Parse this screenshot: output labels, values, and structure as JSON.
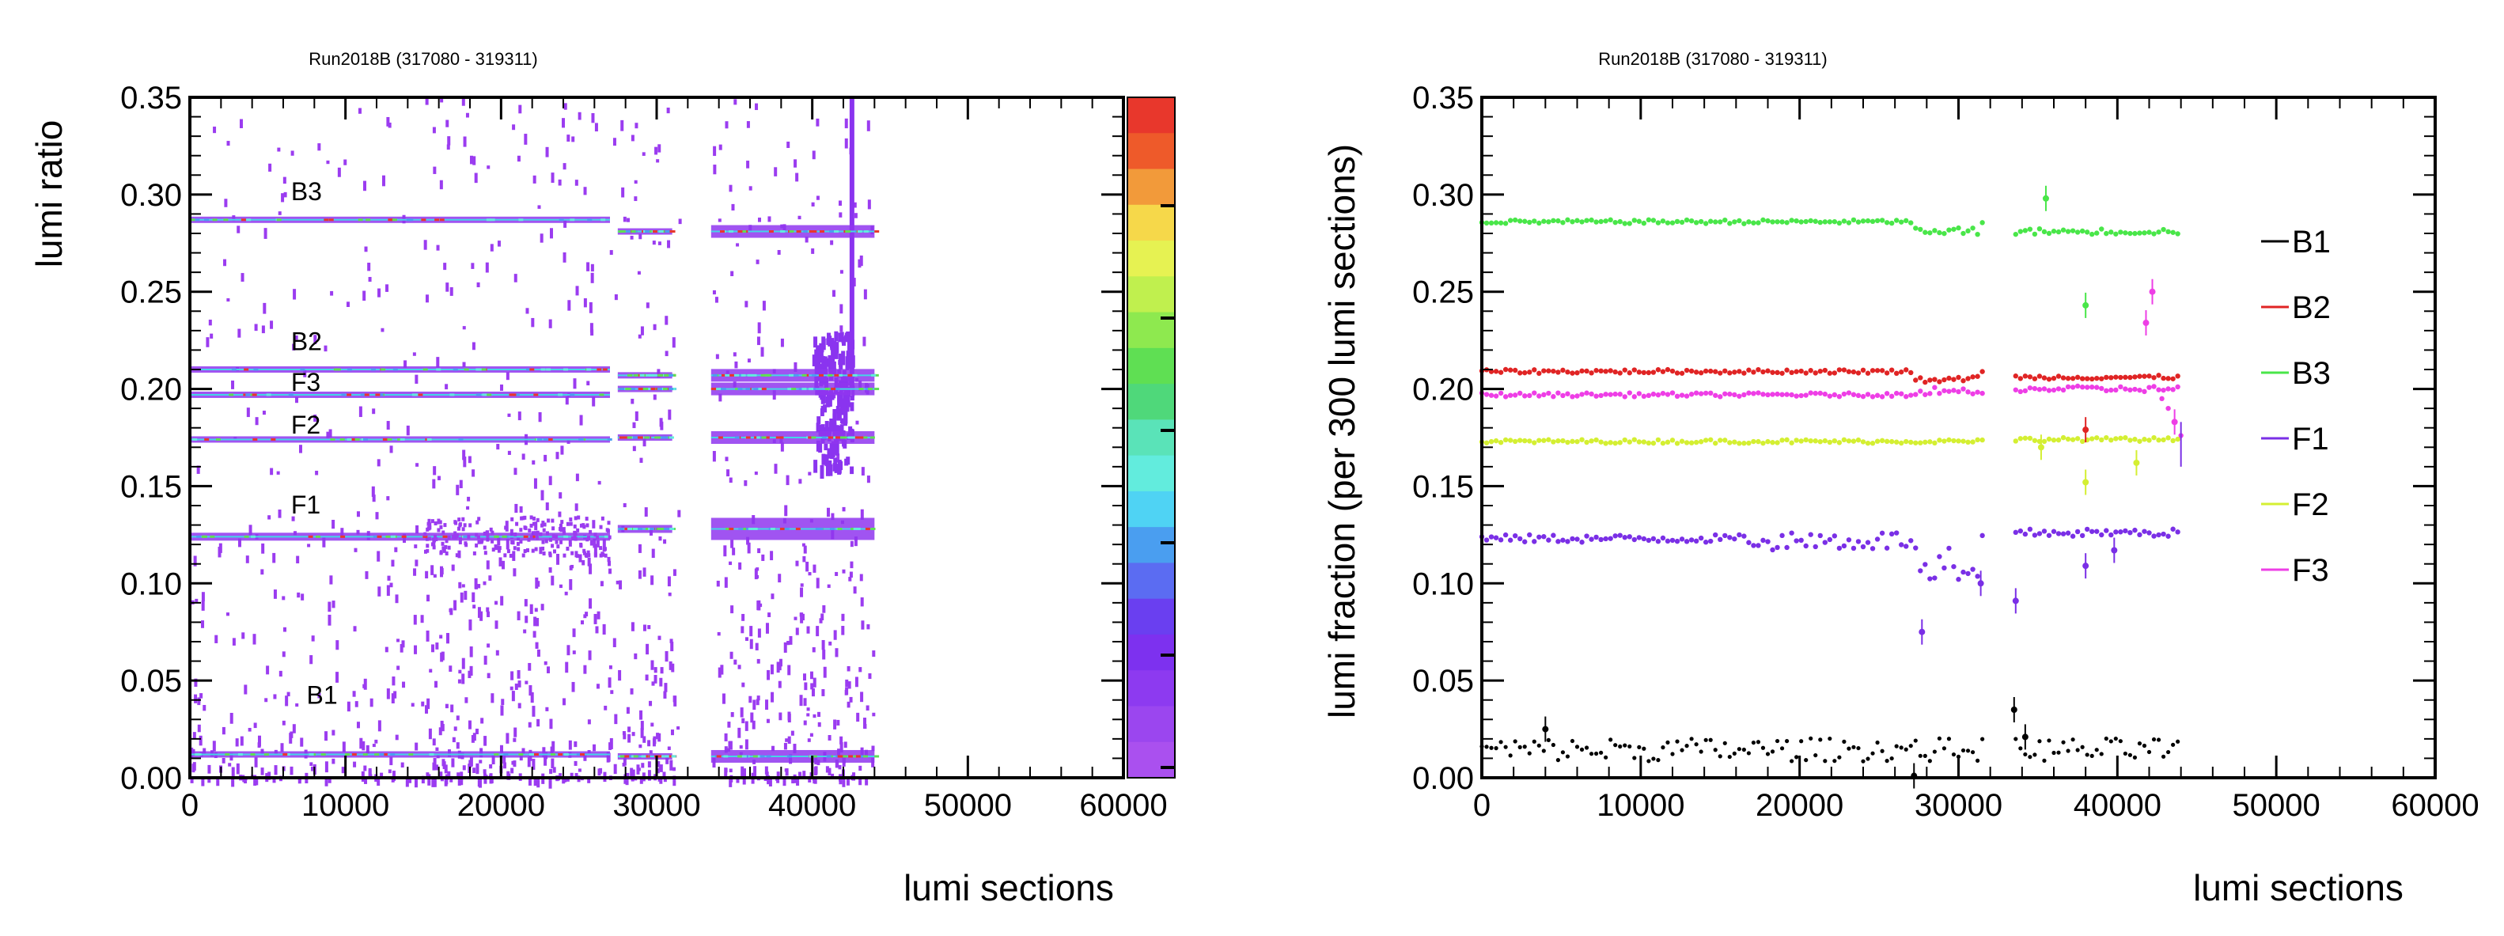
{
  "chart_data": [
    {
      "type": "heatmap",
      "title": "Run2018B (317080 - 319311)",
      "xlabel": "lumi sections",
      "ylabel": "lumi ratio",
      "xlim": [
        0,
        60000
      ],
      "ylim": [
        0,
        0.35
      ],
      "xticks": [
        "0",
        "10000",
        "20000",
        "30000",
        "40000",
        "50000",
        "60000"
      ],
      "yticks": [
        "0.00",
        "0.05",
        "0.10",
        "0.15",
        "0.20",
        "0.25",
        "0.30",
        "0.35"
      ],
      "grid": false,
      "colorbar": true,
      "colorbar_colors": [
        "#e8372c",
        "#ee5a2a",
        "#f29a3a",
        "#f6d84a",
        "#e6f252",
        "#c0f04e",
        "#8ee94f",
        "#5fdf53",
        "#4fd87a",
        "#5ae3b8",
        "#62ecdd",
        "#4fd3f4",
        "#4a9ef0",
        "#5b6cf2",
        "#6a3ff0",
        "#7d31ef",
        "#8d3af0",
        "#9b46ef",
        "#aa50ef"
      ],
      "bands": [
        {
          "name": "B3",
          "y": 0.287,
          "y_late": 0.281
        },
        {
          "name": "B2",
          "y": 0.21,
          "y_late": 0.207
        },
        {
          "name": "F3",
          "y": 0.197,
          "y_late": 0.2
        },
        {
          "name": "F2",
          "y": 0.174,
          "y_late": 0.175
        },
        {
          "name": "F1",
          "y": 0.124,
          "y_late": 0.128
        },
        {
          "name": "B1",
          "y": 0.012,
          "y_late": 0.011
        }
      ],
      "data_range": [
        0,
        44000
      ],
      "gap": [
        31500,
        33500
      ]
    },
    {
      "type": "scatter",
      "title": "Run2018B (317080 - 319311)",
      "xlabel": "lumi sections",
      "ylabel": "lumi fraction (per 300 lumi sections)",
      "xlim": [
        0,
        60000
      ],
      "ylim": [
        0,
        0.35
      ],
      "xticks": [
        "0",
        "10000",
        "20000",
        "30000",
        "40000",
        "50000",
        "60000"
      ],
      "yticks": [
        "0.00",
        "0.05",
        "0.10",
        "0.15",
        "0.20",
        "0.25",
        "0.30",
        "0.35"
      ],
      "grid": false,
      "legend_position": "right",
      "series": [
        {
          "name": "B1",
          "color": "#000000",
          "level": 0.012,
          "jitter": 0.004
        },
        {
          "name": "B2",
          "color": "#e02424",
          "level": 0.209,
          "jitter": 0.001
        },
        {
          "name": "B3",
          "color": "#49e649",
          "level": 0.286,
          "jitter": 0.001
        },
        {
          "name": "F1",
          "color": "#7a2fe6",
          "level": 0.123,
          "jitter": 0.002
        },
        {
          "name": "F2",
          "color": "#d4ef32",
          "level": 0.173,
          "jitter": 0.001
        },
        {
          "name": "F3",
          "color": "#ee3ee6",
          "level": 0.197,
          "jitter": 0.001
        }
      ],
      "outliers": [
        {
          "series": "F1",
          "x": 27700,
          "y": 0.075
        },
        {
          "series": "F1",
          "x": 31400,
          "y": 0.1
        },
        {
          "series": "F1",
          "x": 33600,
          "y": 0.091
        },
        {
          "series": "F1",
          "x": 38000,
          "y": 0.109
        },
        {
          "series": "F1",
          "x": 39800,
          "y": 0.117
        },
        {
          "series": "B3",
          "x": 35500,
          "y": 0.298
        },
        {
          "series": "B3",
          "x": 38000,
          "y": 0.243
        },
        {
          "series": "F3",
          "x": 42200,
          "y": 0.25
        },
        {
          "series": "F3",
          "x": 41800,
          "y": 0.234
        },
        {
          "series": "F3",
          "x": 43600,
          "y": 0.183
        },
        {
          "series": "B2",
          "x": 38000,
          "y": 0.179
        },
        {
          "series": "F2",
          "x": 38000,
          "y": 0.152
        },
        {
          "series": "F2",
          "x": 35200,
          "y": 0.17
        },
        {
          "series": "F2",
          "x": 41200,
          "y": 0.162
        },
        {
          "series": "B1",
          "x": 33500,
          "y": 0.035
        },
        {
          "series": "B1",
          "x": 34200,
          "y": 0.021
        },
        {
          "series": "B1",
          "x": 27200,
          "y": 0.001
        },
        {
          "series": "B1",
          "x": 4000,
          "y": 0.025
        }
      ]
    }
  ]
}
